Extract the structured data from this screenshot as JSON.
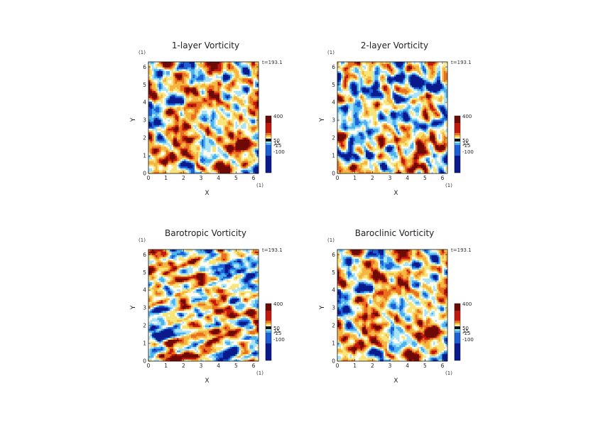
{
  "chart_data": [
    {
      "type": "heatmap",
      "title": "1-layer Vorticity",
      "xlabel": "X",
      "ylabel": "Y",
      "x_unit": "(1)",
      "y_unit": "(1)",
      "xlim": [
        0,
        6.283
      ],
      "ylim": [
        0,
        6.283
      ],
      "xticks": [
        "0",
        "1",
        "2",
        "3",
        "4",
        "5",
        "6"
      ],
      "yticks": [
        "0",
        "1",
        "2",
        "3",
        "4",
        "5",
        "6"
      ],
      "time_label": "t=193.1",
      "colorbar_labels": [
        "400",
        "50",
        "15",
        "-15",
        "-100"
      ],
      "seed": 11,
      "bias": 0.35,
      "vortices": [
        [
          1.3,
          1.1,
          1
        ],
        [
          4.5,
          5.3,
          -1
        ],
        [
          2.3,
          5.0,
          -1
        ],
        [
          5.5,
          1.8,
          1
        ]
      ]
    },
    {
      "type": "heatmap",
      "title": "2-layer Vorticity",
      "xlabel": "X",
      "ylabel": "Y",
      "x_unit": "(1)",
      "y_unit": "(1)",
      "xlim": [
        0,
        6.283
      ],
      "ylim": [
        0,
        6.283
      ],
      "xticks": [
        "0",
        "1",
        "2",
        "3",
        "4",
        "5",
        "6"
      ],
      "yticks": [
        "0",
        "1",
        "2",
        "3",
        "4",
        "5",
        "6"
      ],
      "time_label": "t=193.1",
      "colorbar_labels": [
        "400",
        "50",
        "15",
        "-15",
        "-100"
      ],
      "seed": 23,
      "bias": -0.25,
      "vortices": [
        [
          1.1,
          1.0,
          -1
        ],
        [
          4.8,
          5.2,
          -1
        ],
        [
          5.4,
          2.0,
          1
        ]
      ]
    },
    {
      "type": "heatmap",
      "title": "Barotropic Vorticity",
      "xlabel": "X",
      "ylabel": "Y",
      "x_unit": "(1)",
      "y_unit": "(1)",
      "xlim": [
        0,
        6.283
      ],
      "ylim": [
        0,
        6.283
      ],
      "xticks": [
        "0",
        "1",
        "2",
        "3",
        "4",
        "5",
        "6"
      ],
      "yticks": [
        "0",
        "1",
        "2",
        "3",
        "4",
        "5",
        "6"
      ],
      "time_label": "t=193.1",
      "colorbar_labels": [
        "400",
        "50",
        "15",
        "-15",
        "-100"
      ],
      "seed": 37,
      "bias": 0.0,
      "vortices": [
        [
          1.3,
          1.1,
          1
        ],
        [
          4.6,
          5.4,
          -1
        ],
        [
          5.0,
          0.7,
          -1
        ]
      ]
    },
    {
      "type": "heatmap",
      "title": "Baroclinic Vorticity",
      "xlabel": "X",
      "ylabel": "Y",
      "x_unit": "(1)",
      "y_unit": "(1)",
      "xlim": [
        0,
        6.283
      ],
      "ylim": [
        0,
        6.283
      ],
      "xticks": [
        "0",
        "1",
        "2",
        "3",
        "4",
        "5",
        "6"
      ],
      "yticks": [
        "0",
        "1",
        "2",
        "3",
        "4",
        "5",
        "6"
      ],
      "time_label": "t=193.1",
      "colorbar_labels": [
        "400",
        "50",
        "15",
        "-15",
        "-100"
      ],
      "seed": 11,
      "bias": 0.25,
      "vortices": [
        [
          1.3,
          1.1,
          1
        ],
        [
          4.6,
          5.3,
          -1
        ],
        [
          5.5,
          1.8,
          1
        ]
      ]
    }
  ],
  "colors": {
    "neg_strong": "#0a1a8c",
    "neg_mid": "#1d5fd6",
    "neg_weak": "#4bb2ee",
    "neg_faint": "#a9e3f7",
    "near_zero": "#fffdf0",
    "pos_faint": "#f8e57a",
    "pos_weak": "#f6b440",
    "pos_mid": "#e9701f",
    "pos_strong": "#c2190c",
    "pos_max": "#6e0a05"
  }
}
